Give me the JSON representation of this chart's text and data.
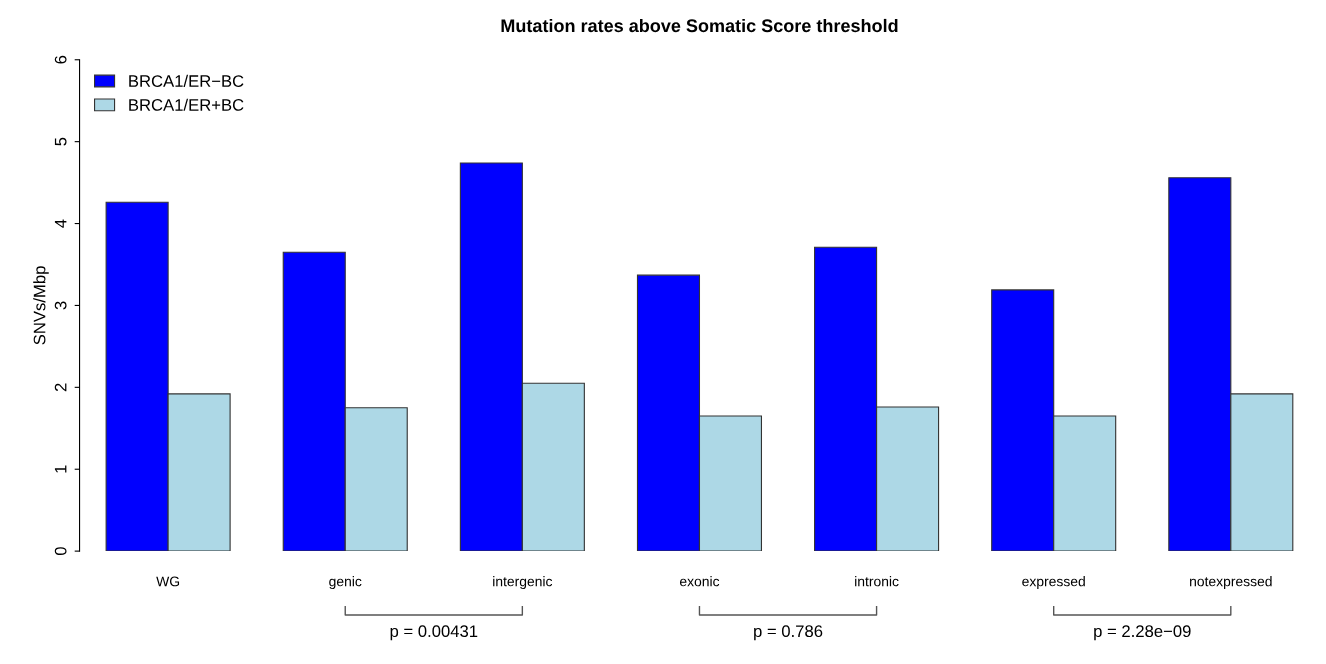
{
  "chart_data": {
    "type": "bar",
    "title": "Mutation rates above Somatic Score threshold",
    "ylabel": "SNVs/Mbp",
    "categories": [
      "WG",
      "genic",
      "intergenic",
      "exonic",
      "intronic",
      "expressed",
      "notexpressed"
    ],
    "series": [
      {
        "name": "BRCA1/ER−BC",
        "color": "#0000ff",
        "values": [
          4.26,
          3.65,
          4.74,
          3.37,
          3.71,
          3.19,
          4.56
        ]
      },
      {
        "name": "BRCA1/ER+BC",
        "color": "#add8e6",
        "values": [
          1.92,
          1.75,
          2.05,
          1.65,
          1.76,
          1.65,
          1.92
        ]
      }
    ],
    "ylim": [
      0,
      6
    ],
    "yticks": [
      0,
      1,
      2,
      3,
      4,
      5,
      6
    ],
    "grid": false,
    "legend": "top left",
    "annotations": [
      "p = 0.00431",
      "p = 0.786",
      "p = 2.28e−09"
    ]
  }
}
